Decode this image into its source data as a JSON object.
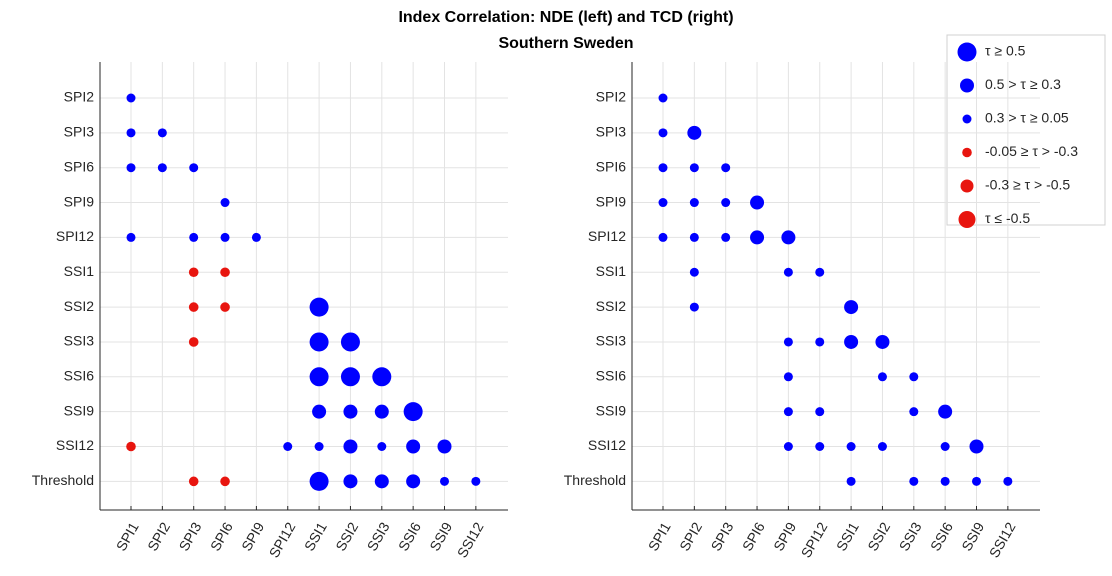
{
  "chart_data": {
    "type": "bubble-matrix",
    "title": "Index Correlation: NDE (left) and TCD (right)",
    "subtitle": "Southern Sweden",
    "categories": [
      "SPI1",
      "SPI2",
      "SPI3",
      "SPI6",
      "SPI9",
      "SPI12",
      "SSI1",
      "SSI2",
      "SSI3",
      "SSI6",
      "SSI9",
      "SSI12"
    ],
    "rows": [
      "SPI2",
      "SPI3",
      "SPI6",
      "SPI9",
      "SPI12",
      "SSI1",
      "SSI2",
      "SSI3",
      "SSI6",
      "SSI9",
      "SSI12",
      "Threshold"
    ],
    "series": [
      {
        "name": "τ ≥ 0.5",
        "color": "#0000ff",
        "left": [
          [
            "SSI1",
            "SSI2"
          ],
          [
            "SSI1",
            "SSI3"
          ],
          [
            "SSI2",
            "SSI3"
          ],
          [
            "SSI1",
            "SSI6"
          ],
          [
            "SSI2",
            "SSI6"
          ],
          [
            "SSI3",
            "SSI6"
          ],
          [
            "SSI6",
            "SSI9"
          ],
          [
            "SSI1",
            "Threshold"
          ]
        ],
        "right": []
      },
      {
        "name": "0.5 > τ ≥ 0.3",
        "color": "#0000ff",
        "left": [
          [
            "SSI1",
            "SSI9"
          ],
          [
            "SSI2",
            "SSI9"
          ],
          [
            "SSI3",
            "SSI9"
          ],
          [
            "SSI2",
            "SSI12"
          ],
          [
            "SSI6",
            "SSI12"
          ],
          [
            "SSI9",
            "SSI12"
          ],
          [
            "SSI2",
            "Threshold"
          ],
          [
            "SSI3",
            "Threshold"
          ],
          [
            "SSI6",
            "Threshold"
          ]
        ],
        "right": [
          [
            "SPI2",
            "SPI3"
          ],
          [
            "SPI6",
            "SPI9"
          ],
          [
            "SPI6",
            "SPI12"
          ],
          [
            "SPI9",
            "SPI12"
          ],
          [
            "SSI1",
            "SSI2"
          ],
          [
            "SSI1",
            "SSI3"
          ],
          [
            "SSI2",
            "SSI3"
          ],
          [
            "SSI6",
            "SSI9"
          ],
          [
            "SSI9",
            "SSI12"
          ]
        ]
      },
      {
        "name": "0.3 > τ ≥ 0.05",
        "color": "#0000ff",
        "left": [
          [
            "SPI1",
            "SPI2"
          ],
          [
            "SPI1",
            "SPI3"
          ],
          [
            "SPI2",
            "SPI3"
          ],
          [
            "SPI1",
            "SPI6"
          ],
          [
            "SPI2",
            "SPI6"
          ],
          [
            "SPI3",
            "SPI6"
          ],
          [
            "SPI6",
            "SPI9"
          ],
          [
            "SPI1",
            "SPI12"
          ],
          [
            "SPI3",
            "SPI12"
          ],
          [
            "SPI6",
            "SPI12"
          ],
          [
            "SPI9",
            "SPI12"
          ],
          [
            "SPI12",
            "SSI12"
          ],
          [
            "SSI1",
            "SSI12"
          ],
          [
            "SSI3",
            "SSI12"
          ],
          [
            "SSI9",
            "Threshold"
          ],
          [
            "SSI12",
            "Threshold"
          ]
        ],
        "right": [
          [
            "SPI1",
            "SPI2"
          ],
          [
            "SPI1",
            "SPI3"
          ],
          [
            "SPI1",
            "SPI6"
          ],
          [
            "SPI2",
            "SPI6"
          ],
          [
            "SPI3",
            "SPI6"
          ],
          [
            "SPI1",
            "SPI9"
          ],
          [
            "SPI2",
            "SPI9"
          ],
          [
            "SPI3",
            "SPI9"
          ],
          [
            "SPI1",
            "SPI12"
          ],
          [
            "SPI2",
            "SPI12"
          ],
          [
            "SPI3",
            "SPI12"
          ],
          [
            "SPI2",
            "SSI1"
          ],
          [
            "SPI9",
            "SSI1"
          ],
          [
            "SPI12",
            "SSI1"
          ],
          [
            "SPI2",
            "SSI2"
          ],
          [
            "SPI9",
            "SSI3"
          ],
          [
            "SPI12",
            "SSI3"
          ],
          [
            "SPI9",
            "SSI6"
          ],
          [
            "SSI2",
            "SSI6"
          ],
          [
            "SSI3",
            "SSI6"
          ],
          [
            "SPI9",
            "SSI9"
          ],
          [
            "SPI12",
            "SSI9"
          ],
          [
            "SSI3",
            "SSI9"
          ],
          [
            "SPI9",
            "SSI12"
          ],
          [
            "SPI12",
            "SSI12"
          ],
          [
            "SSI1",
            "SSI12"
          ],
          [
            "SSI2",
            "SSI12"
          ],
          [
            "SSI6",
            "SSI12"
          ],
          [
            "SSI1",
            "Threshold"
          ],
          [
            "SSI3",
            "Threshold"
          ],
          [
            "SSI6",
            "Threshold"
          ],
          [
            "SSI9",
            "Threshold"
          ],
          [
            "SSI12",
            "Threshold"
          ]
        ]
      },
      {
        "name": "-0.05 ≥ τ > -0.3",
        "color": "#e8150f",
        "left": [
          [
            "SPI3",
            "SSI1"
          ],
          [
            "SPI6",
            "SSI1"
          ],
          [
            "SPI3",
            "SSI2"
          ],
          [
            "SPI6",
            "SSI2"
          ],
          [
            "SPI3",
            "SSI3"
          ],
          [
            "SPI1",
            "SSI12"
          ],
          [
            "SPI3",
            "Threshold"
          ],
          [
            "SPI6",
            "Threshold"
          ]
        ],
        "right": []
      },
      {
        "name": "-0.3 ≥ τ > -0.5",
        "color": "#e8150f",
        "left": [],
        "right": []
      },
      {
        "name": "τ ≤ -0.5",
        "color": "#e8150f",
        "left": [],
        "right": []
      }
    ]
  }
}
